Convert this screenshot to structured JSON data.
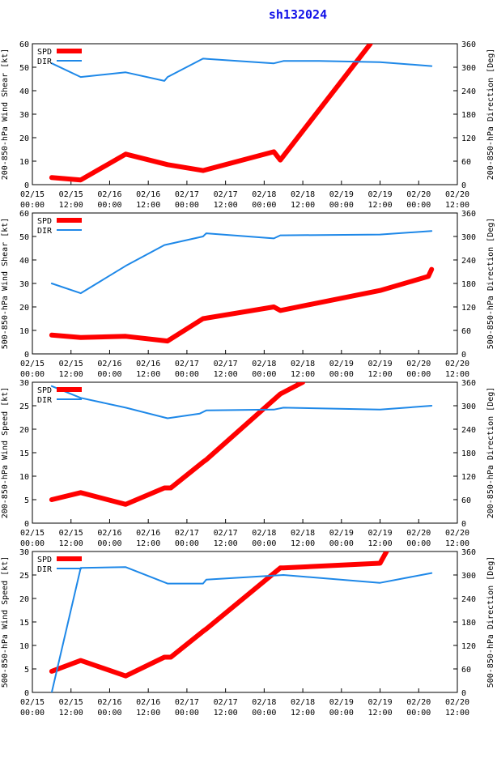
{
  "title": "sh132024",
  "x_ticks": [
    {
      "day": "02/15",
      "hour": "00:00"
    },
    {
      "day": "02/15",
      "hour": "12:00"
    },
    {
      "day": "02/16",
      "hour": "00:00"
    },
    {
      "day": "02/16",
      "hour": "12:00"
    },
    {
      "day": "02/17",
      "hour": "00:00"
    },
    {
      "day": "02/17",
      "hour": "12:00"
    },
    {
      "day": "02/18",
      "hour": "00:00"
    },
    {
      "day": "02/18",
      "hour": "12:00"
    },
    {
      "day": "02/19",
      "hour": "00:00"
    },
    {
      "day": "02/19",
      "hour": "12:00"
    },
    {
      "day": "02/20",
      "hour": "00:00"
    },
    {
      "day": "02/20",
      "hour": "12:00"
    }
  ],
  "colors": {
    "spd": "#ff0000",
    "dir": "#1e88e8",
    "title": "#1010e8"
  },
  "chart_data": [
    {
      "type": "line",
      "ylabel_left": "200-850-hPa Wind Shear [kt]",
      "ylabel_right": "200-850-hPa Direction [Deg]",
      "ylim_left": [
        0,
        60
      ],
      "yticks_left": [
        0,
        10,
        20,
        30,
        40,
        50,
        60
      ],
      "ylim_right": [
        0,
        360
      ],
      "yticks_right": [
        0,
        60,
        120,
        180,
        240,
        300,
        360
      ],
      "xlim_hours": [
        0,
        132
      ],
      "legend": "top-left",
      "series": [
        {
          "name": "SPD",
          "axis": "left",
          "x": [
            6,
            15,
            29,
            42,
            53,
            75,
            77,
            105
          ],
          "y": [
            3,
            2,
            13,
            8.5,
            6,
            14,
            10.5,
            60
          ]
        },
        {
          "name": "DIR",
          "axis": "right",
          "x": [
            6,
            15,
            29,
            41,
            42,
            53,
            75,
            78,
            89,
            108,
            124
          ],
          "y": [
            310,
            275,
            287,
            265,
            275,
            322,
            310,
            316,
            316,
            313,
            303
          ]
        }
      ]
    },
    {
      "type": "line",
      "ylabel_left": "500-850-hPa Wind Shear [kt]",
      "ylabel_right": "500-850-hPa Direction [Deg]",
      "ylim_left": [
        0,
        60
      ],
      "yticks_left": [
        0,
        10,
        20,
        30,
        40,
        50,
        60
      ],
      "ylim_right": [
        0,
        360
      ],
      "yticks_right": [
        0,
        60,
        120,
        180,
        240,
        300,
        360
      ],
      "xlim_hours": [
        0,
        132
      ],
      "legend": "top-left",
      "series": [
        {
          "name": "SPD",
          "axis": "left",
          "x": [
            6,
            15,
            29,
            42,
            53,
            75,
            77,
            108,
            123,
            124
          ],
          "y": [
            8,
            7,
            7.5,
            5.5,
            15,
            20,
            18.5,
            27,
            33,
            36
          ]
        },
        {
          "name": "DIR",
          "axis": "right",
          "x": [
            6,
            15,
            29,
            41,
            53,
            54,
            75,
            77,
            108,
            124
          ],
          "y": [
            180,
            155,
            225,
            278,
            300,
            308,
            295,
            303,
            305,
            314
          ]
        }
      ]
    },
    {
      "type": "line",
      "ylabel_left": "200-850-hPa Wind Speed [kt]",
      "ylabel_right": "200-850-hPa Direction [Deg]",
      "ylim_left": [
        0,
        30
      ],
      "yticks_left": [
        0,
        5,
        10,
        15,
        20,
        25,
        30
      ],
      "ylim_right": [
        0,
        360
      ],
      "yticks_right": [
        0,
        60,
        120,
        180,
        240,
        300,
        360
      ],
      "xlim_hours": [
        0,
        132
      ],
      "legend": "top-left",
      "series": [
        {
          "name": "SPD",
          "axis": "left",
          "x": [
            6,
            15,
            29,
            41,
            43,
            53,
            54,
            77,
            84
          ],
          "y": [
            5,
            6.5,
            4,
            7.5,
            7.5,
            13,
            13.5,
            27.5,
            30
          ]
        },
        {
          "name": "DIR",
          "axis": "right",
          "x": [
            6,
            15,
            29,
            42,
            52,
            54,
            75,
            78,
            108,
            124
          ],
          "y": [
            350,
            320,
            295,
            268,
            280,
            288,
            290,
            295,
            290,
            300
          ]
        }
      ]
    },
    {
      "type": "line",
      "ylabel_left": "500-850-hPa Wind Speed [kt]",
      "ylabel_right": "500-850-hPa Direction [Deg]",
      "ylim_left": [
        0,
        30
      ],
      "yticks_left": [
        0,
        5,
        10,
        15,
        20,
        25,
        30
      ],
      "ylim_right": [
        0,
        360
      ],
      "yticks_right": [
        0,
        60,
        120,
        180,
        240,
        300,
        360
      ],
      "xlim_hours": [
        0,
        132
      ],
      "legend": "top-left",
      "series": [
        {
          "name": "SPD",
          "axis": "left",
          "x": [
            6,
            15,
            29,
            41,
            43,
            53,
            54,
            77,
            78,
            108,
            110
          ],
          "y": [
            4.5,
            6.8,
            3.5,
            7.5,
            7.5,
            13,
            13.5,
            26.5,
            26.5,
            27.5,
            30
          ]
        },
        {
          "name": "DIR",
          "axis": "right",
          "x": [
            6,
            15,
            29,
            42,
            53,
            54,
            78,
            108,
            124
          ],
          "y": [
            0,
            318,
            320,
            278,
            278,
            288,
            300,
            280,
            305
          ]
        }
      ]
    }
  ]
}
